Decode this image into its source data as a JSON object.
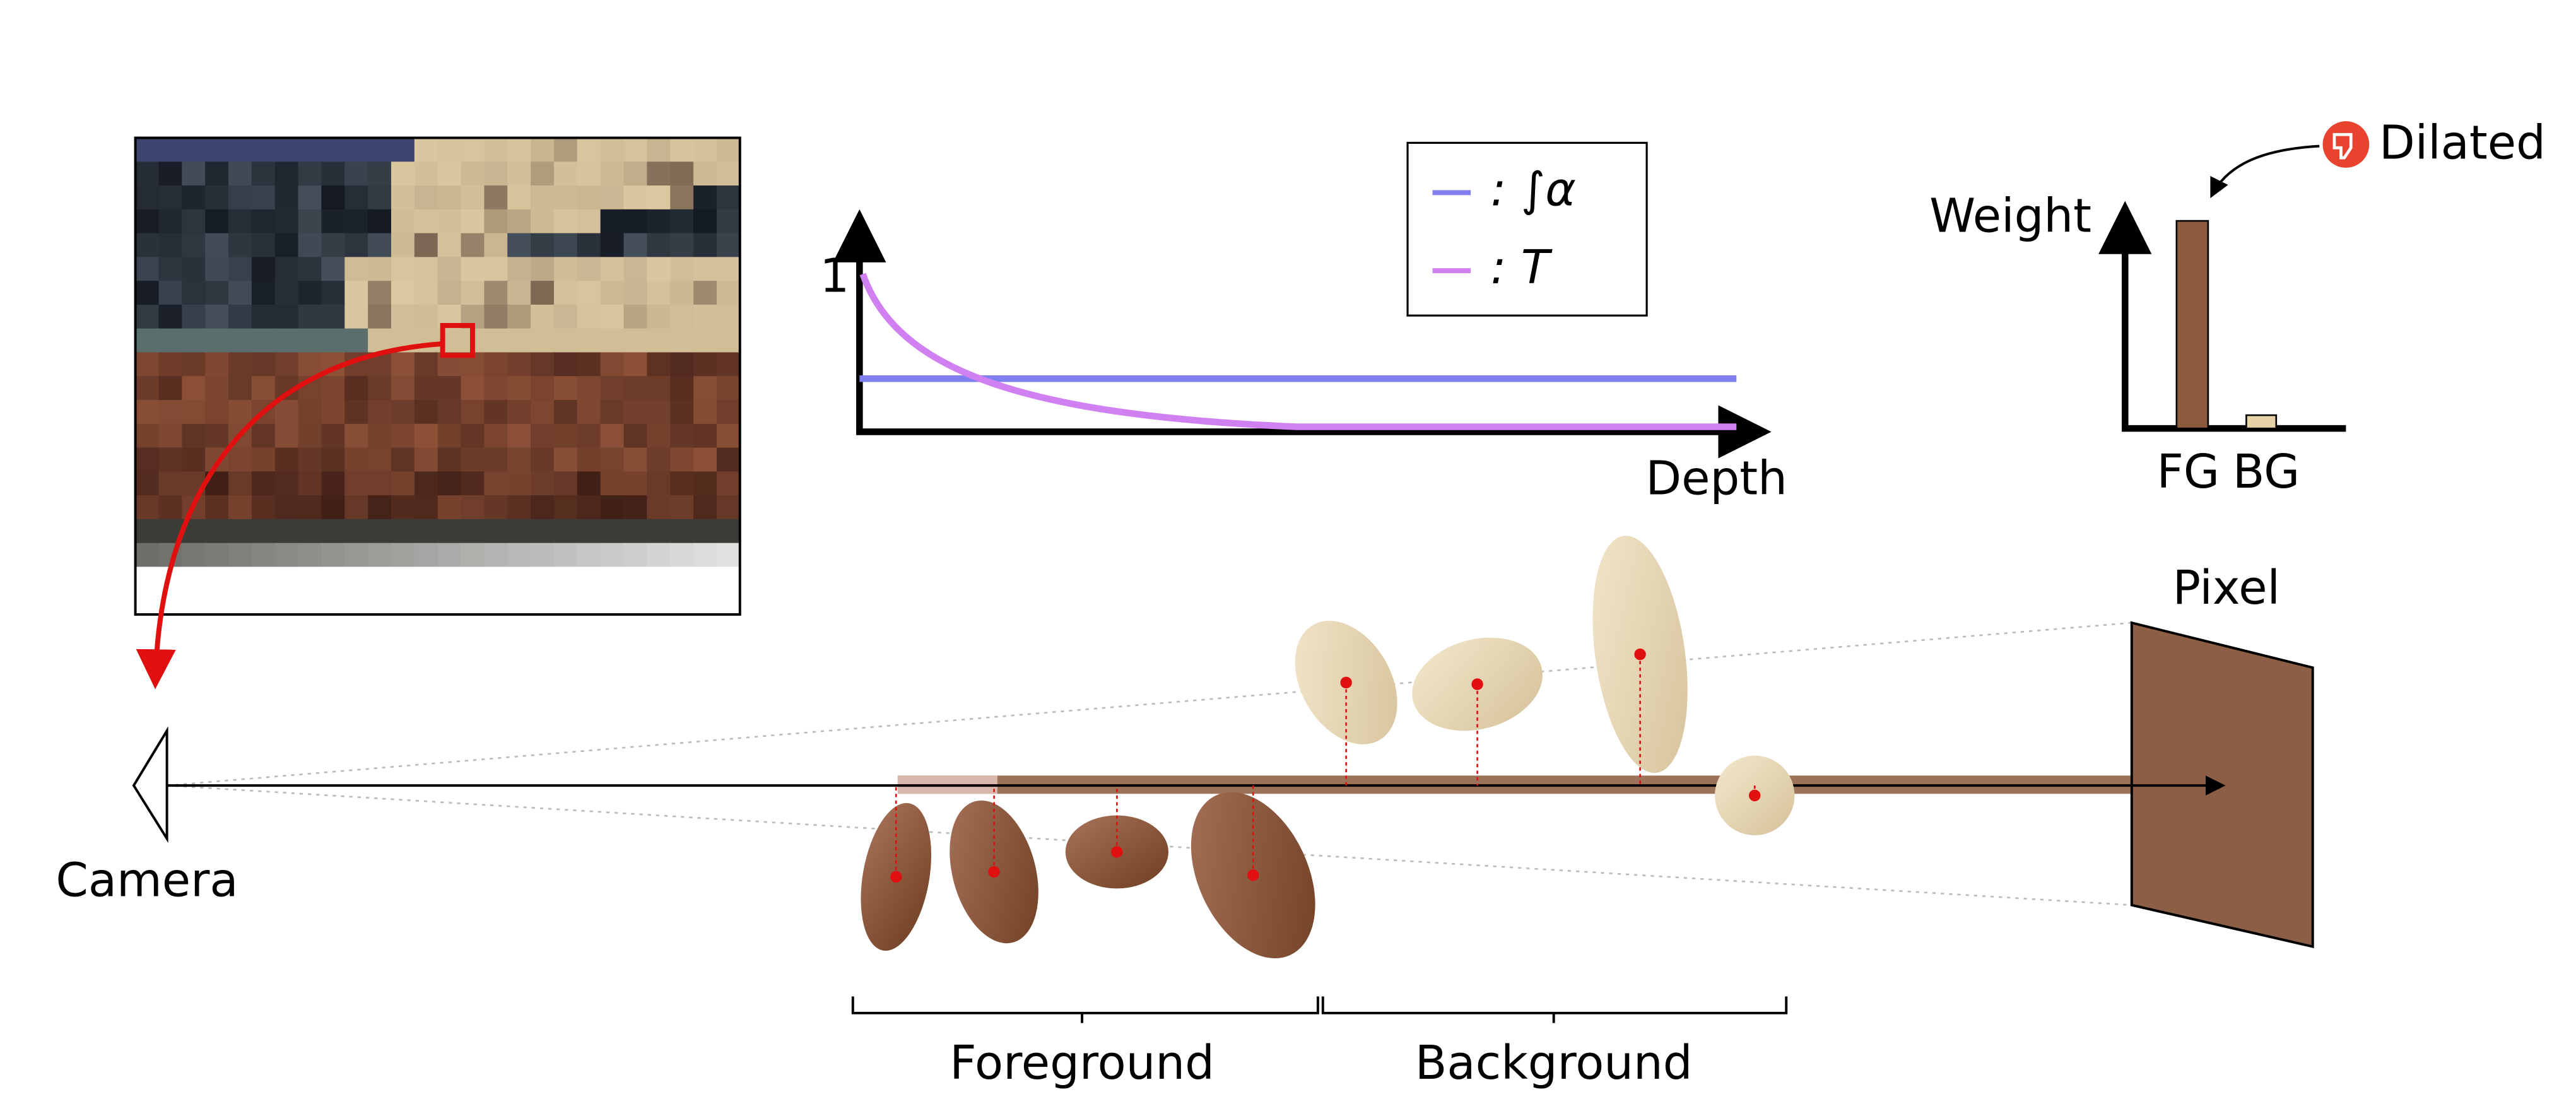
{
  "camera": "Camera",
  "pixel": "Pixel",
  "groups": {
    "foreground": "Foreground",
    "background": "Background"
  },
  "plot": {
    "y_label": "1",
    "x_label": "Depth",
    "legend": [
      ": ∫α",
      ": T"
    ]
  },
  "weight_chart": {
    "y_label": "Weight",
    "categories": [
      "FG",
      "BG"
    ],
    "note": "Dilated"
  }
}
